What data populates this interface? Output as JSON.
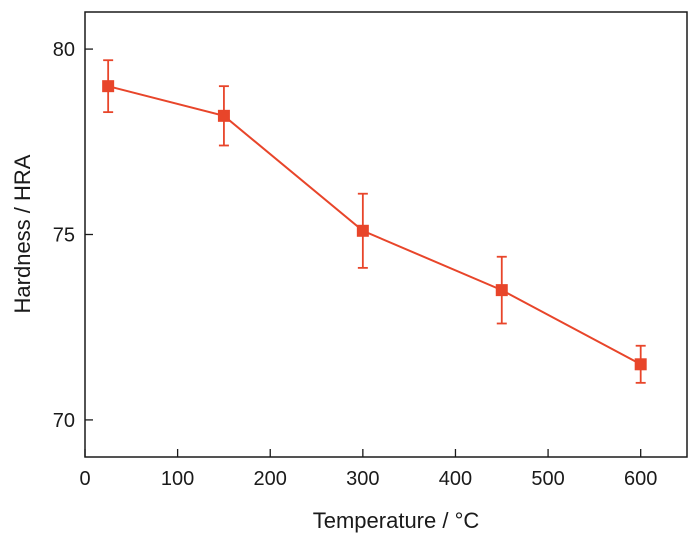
{
  "chart_data": {
    "type": "line",
    "title": "",
    "xlabel": "Temperature / °C",
    "ylabel": "Hardness / HRA",
    "xlim": [
      0,
      650
    ],
    "ylim": [
      69,
      81
    ],
    "xticks": [
      0,
      100,
      200,
      300,
      400,
      500,
      600
    ],
    "yticks": [
      70,
      75,
      80
    ],
    "grid": false,
    "legend": "none",
    "series": [
      {
        "color": "#e8452a",
        "marker": "square",
        "x": [
          25,
          150,
          300,
          450,
          600
        ],
        "y": [
          79.0,
          78.2,
          75.1,
          73.5,
          71.5
        ],
        "error": [
          0.7,
          0.8,
          1.0,
          0.9,
          0.5
        ]
      }
    ]
  }
}
